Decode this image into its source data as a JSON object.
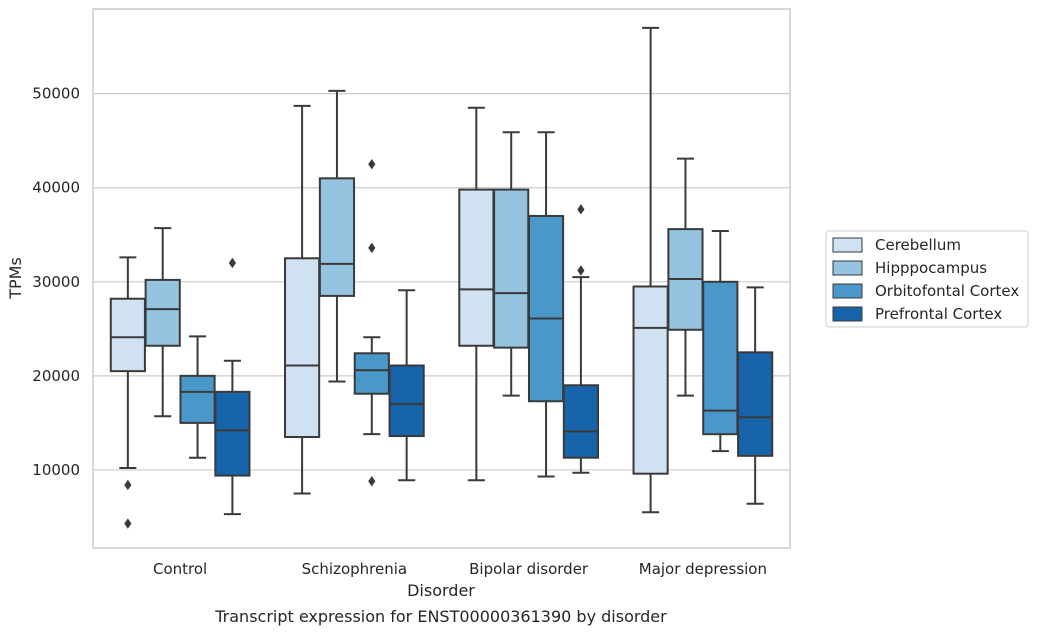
{
  "chart_data": {
    "type": "box",
    "title": "",
    "caption": "Transcript expression for ENST00000361390 by disorder",
    "xlabel": "Disorder",
    "ylabel": "TPMs",
    "ylim": [
      1700,
      59000
    ],
    "yticks": [
      10000,
      20000,
      30000,
      40000,
      50000
    ],
    "ytick_labels": [
      "10000",
      "20000",
      "30000",
      "40000",
      "50000"
    ],
    "grid": "horizontal",
    "legend_position": "right",
    "categories": [
      "Control",
      "Schizophrenia",
      "Bipolar disorder",
      "Major depression"
    ],
    "series": [
      {
        "name": "Cerebellum",
        "color": "#d0e1f2",
        "boxes": [
          {
            "whislo": 10200,
            "q1": 20500,
            "med": 24100,
            "q3": 28200,
            "whishi": 32600,
            "fliers": [
              8400,
              4300
            ]
          },
          {
            "whislo": 7500,
            "q1": 13500,
            "med": 21100,
            "q3": 32500,
            "whishi": 48700,
            "fliers": []
          },
          {
            "whislo": 8900,
            "q1": 23200,
            "med": 29200,
            "q3": 39800,
            "whishi": 48500,
            "fliers": []
          },
          {
            "whislo": 5500,
            "q1": 9600,
            "med": 25100,
            "q3": 29500,
            "whishi": 57000,
            "fliers": []
          }
        ]
      },
      {
        "name": "Hipppocampus",
        "color": "#94c4df",
        "boxes": [
          {
            "whislo": 15700,
            "q1": 23200,
            "med": 27100,
            "q3": 30200,
            "whishi": 35700,
            "fliers": []
          },
          {
            "whislo": 19400,
            "q1": 28500,
            "med": 31900,
            "q3": 41000,
            "whishi": 50300,
            "fliers": []
          },
          {
            "whislo": 17900,
            "q1": 23000,
            "med": 28800,
            "q3": 39800,
            "whishi": 45900,
            "fliers": []
          },
          {
            "whislo": 17900,
            "q1": 24900,
            "med": 30300,
            "q3": 35600,
            "whishi": 43100,
            "fliers": []
          }
        ]
      },
      {
        "name": "Orbitofontal Cortex",
        "color": "#4a98c9",
        "boxes": [
          {
            "whislo": 11300,
            "q1": 15000,
            "med": 18300,
            "q3": 20000,
            "whishi": 24200,
            "fliers": []
          },
          {
            "whislo": 13800,
            "q1": 18100,
            "med": 20600,
            "q3": 22400,
            "whishi": 24100,
            "fliers": [
              42500,
              33600,
              8800
            ]
          },
          {
            "whislo": 9300,
            "q1": 17300,
            "med": 26100,
            "q3": 37000,
            "whishi": 45900,
            "fliers": []
          },
          {
            "whislo": 12000,
            "q1": 13800,
            "med": 16300,
            "q3": 30000,
            "whishi": 35400,
            "fliers": []
          }
        ]
      },
      {
        "name": "Prefrontal Cortex",
        "color": "#1764ab",
        "boxes": [
          {
            "whislo": 5300,
            "q1": 9400,
            "med": 14200,
            "q3": 18300,
            "whishi": 21600,
            "fliers": [
              32000
            ]
          },
          {
            "whislo": 8900,
            "q1": 13600,
            "med": 17000,
            "q3": 21100,
            "whishi": 29100,
            "fliers": []
          },
          {
            "whislo": 9700,
            "q1": 11300,
            "med": 14100,
            "q3": 19000,
            "whishi": 30500,
            "fliers": [
              37700,
              31200
            ]
          },
          {
            "whislo": 6400,
            "q1": 11500,
            "med": 15600,
            "q3": 22500,
            "whishi": 29400,
            "fliers": []
          }
        ]
      }
    ]
  }
}
